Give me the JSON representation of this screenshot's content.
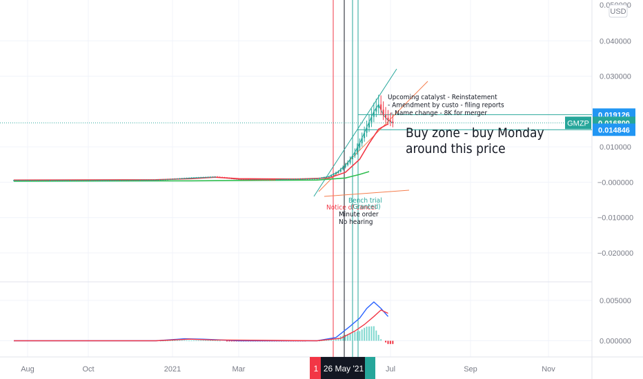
{
  "chart_data": {
    "type": "candlestick",
    "symbol": "GMZP",
    "currency": "USD",
    "x_axis": {
      "tick_labels": [
        "Aug",
        "Oct",
        "2021",
        "Mar",
        "Jul",
        "Sep",
        "Nov"
      ],
      "highlight_label": "26 May '21",
      "highlight_left_stub": "1"
    },
    "price_panel": {
      "ylim": [
        -0.028,
        0.05
      ],
      "tick_values": [
        0.04,
        0.03,
        0.01,
        0.0,
        -0.01,
        -0.02
      ],
      "tick_labels": [
        "0.040000",
        "0.030000",
        "0.010000",
        "−0.000000",
        "−0.010000",
        "−0.020000"
      ],
      "top_partial_label": "0.050000",
      "series": [
        {
          "name": "close",
          "color": "#26a69a",
          "points": [
            [
              0,
              0.0005
            ],
            [
              40,
              0.0005
            ],
            [
              60,
              0.0006
            ],
            [
              75,
              0.0012
            ],
            [
              85,
              0.0015
            ],
            [
              95,
              0.0008
            ],
            [
              110,
              0.0007
            ],
            [
              120,
              0.0009
            ],
            [
              128,
              0.001
            ],
            [
              133,
              0.0016
            ],
            [
              137,
              0.003
            ],
            [
              141,
              0.0055
            ],
            [
              144,
              0.0085
            ],
            [
              146,
              0.011
            ],
            [
              148,
              0.014
            ],
            [
              150,
              0.017
            ],
            [
              152,
              0.02
            ],
            [
              154,
              0.022
            ],
            [
              156,
              0.019
            ],
            [
              158,
              0.0175
            ],
            [
              160,
              0.0168
            ]
          ]
        },
        {
          "name": "ma-fast",
          "color": "#f23645",
          "points": [
            [
              0,
              0.0006
            ],
            [
              60,
              0.0007
            ],
            [
              75,
              0.001
            ],
            [
              85,
              0.0014
            ],
            [
              95,
              0.001
            ],
            [
              120,
              0.0009
            ],
            [
              133,
              0.0012
            ],
            [
              140,
              0.0028
            ],
            [
              146,
              0.0065
            ],
            [
              150,
              0.011
            ],
            [
              154,
              0.015
            ],
            [
              158,
              0.0165
            ]
          ]
        },
        {
          "name": "ma-slow",
          "color": "#2ebd4e",
          "points": [
            [
              0,
              0.0003
            ],
            [
              75,
              0.0004
            ],
            [
              100,
              0.0005
            ],
            [
              128,
              0.0006
            ],
            [
              140,
              0.0012
            ],
            [
              146,
              0.0022
            ],
            [
              150,
              0.003
            ]
          ]
        }
      ],
      "annotations": {
        "price_labels": [
          {
            "value": 0.019126,
            "label": "0.019126",
            "color": "#2196f3"
          },
          {
            "value": 0.0168,
            "label": "0.016800",
            "color": "#26a69a",
            "tag": "GMZP"
          },
          {
            "value": 0.014846,
            "label": "0.014846",
            "color": "#2196f3"
          }
        ],
        "buy_zone_text": [
          "Buy zone - buy Monday",
          "around this price"
        ],
        "catalyst_text": [
          "Upcoming catalyst - Reinstatement",
          "- Amendment by custo - filing reports",
          "- Name change - 8K for merger"
        ],
        "event_notes": [
          {
            "text": "Bench trial",
            "color": "#26a69a"
          },
          {
            "text": "Notice of cancel",
            "color": "#f23645"
          },
          {
            "text": "(Granted)",
            "color": "#26a69a"
          },
          {
            "text": "Minute order",
            "color": "#131722"
          },
          {
            "text": "No hearing",
            "color": "#131722"
          }
        ]
      }
    },
    "indicator_panel": {
      "ylim": [
        -0.002,
        0.0072
      ],
      "tick_values": [
        0.005,
        0.0
      ],
      "tick_labels": [
        "0.005000",
        "0.000000"
      ],
      "series": [
        {
          "name": "macd",
          "color": "#2962ff",
          "points": [
            [
              0,
              0.0
            ],
            [
              60,
              0.0
            ],
            [
              72,
              0.00025
            ],
            [
              80,
              0.0002
            ],
            [
              95,
              0.0
            ],
            [
              128,
              0.0
            ],
            [
              136,
              0.0004
            ],
            [
              142,
              0.0018
            ],
            [
              146,
              0.0028
            ],
            [
              149,
              0.004
            ],
            [
              152,
              0.0048
            ],
            [
              155,
              0.004
            ],
            [
              158,
              0.003
            ]
          ]
        },
        {
          "name": "signal",
          "color": "#f23645",
          "points": [
            [
              0,
              0.0
            ],
            [
              60,
              0.0
            ],
            [
              74,
              0.0002
            ],
            [
              84,
              0.0001
            ],
            [
              128,
              0.0
            ],
            [
              138,
              0.0003
            ],
            [
              144,
              0.0012
            ],
            [
              148,
              0.002
            ],
            [
              152,
              0.003
            ],
            [
              155,
              0.0038
            ],
            [
              158,
              0.0034
            ]
          ]
        }
      ]
    }
  }
}
